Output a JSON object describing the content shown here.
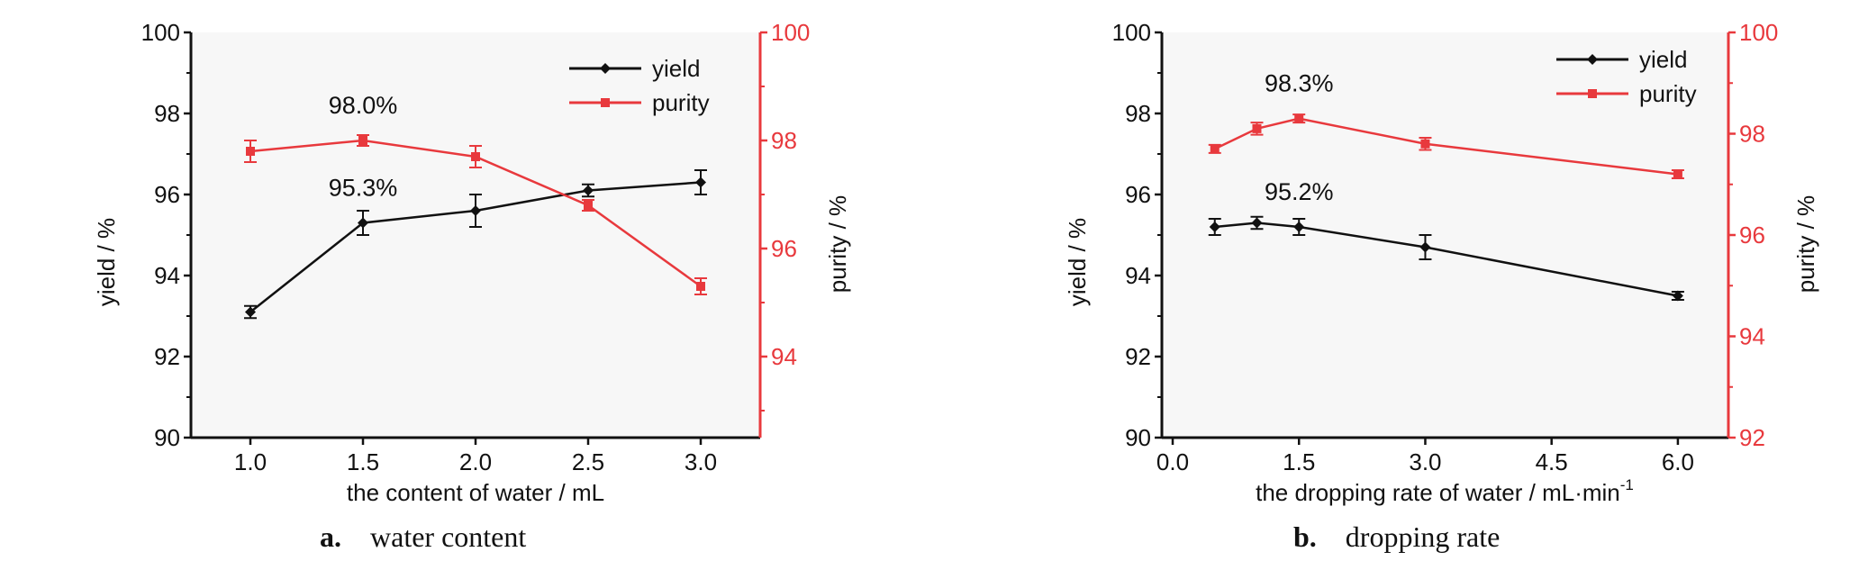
{
  "colors": {
    "yield": "#111111",
    "purity": "#e8393d",
    "plot_bg": "#f7f7f7"
  },
  "chart_data": [
    {
      "type": "line",
      "caption_letter": "a.",
      "caption_text": "water content",
      "xlabel": "the content of water / mL",
      "ylabel_left": "yield / %",
      "ylabel_right": "purity / %",
      "x_categories": [
        "1.0",
        "1.5",
        "2.0",
        "2.5",
        "3.0"
      ],
      "ylim_left": [
        90,
        100
      ],
      "yticks_left": [
        90,
        92,
        94,
        96,
        98,
        100
      ],
      "ylim_right": [
        92.5,
        100
      ],
      "yticks_right": [
        94,
        96,
        98,
        100
      ],
      "legend_position": "top-right",
      "series": [
        {
          "name": "yield",
          "axis": "left",
          "marker": "diamond",
          "values": [
            93.1,
            95.3,
            95.6,
            96.1,
            96.3
          ],
          "errors": [
            0.15,
            0.3,
            0.4,
            0.15,
            0.3
          ]
        },
        {
          "name": "purity",
          "axis": "right",
          "marker": "square",
          "values": [
            97.8,
            98.0,
            97.7,
            96.8,
            95.3
          ],
          "errors": [
            0.2,
            0.1,
            0.2,
            0.1,
            0.15
          ]
        }
      ],
      "annotations": [
        {
          "text": "98.0%",
          "x_index": 1,
          "axis": "right",
          "value": 98.0
        },
        {
          "text": "95.3%",
          "x_index": 1,
          "axis": "left",
          "value": 95.3
        }
      ]
    },
    {
      "type": "line",
      "caption_letter": "b.",
      "caption_text": "dropping rate",
      "xlabel": "the dropping rate of water / mL·min",
      "xlabel_sup": "-1",
      "ylabel_left": "yield / %",
      "ylabel_right": "purity / %",
      "xlim": [
        0,
        6.6
      ],
      "xticks": [
        0.0,
        1.5,
        3.0,
        4.5,
        6.0
      ],
      "xtick_labels": [
        "0.0",
        "1.5",
        "3.0",
        "4.5",
        "6.0"
      ],
      "ylim_left": [
        90,
        100
      ],
      "yticks_left": [
        90,
        92,
        94,
        96,
        98,
        100
      ],
      "ylim_right": [
        92,
        100
      ],
      "yticks_right": [
        92,
        94,
        96,
        98,
        100
      ],
      "legend_position": "top-right",
      "series": [
        {
          "name": "yield",
          "axis": "left",
          "marker": "diamond",
          "x": [
            0.5,
            1.0,
            1.5,
            3.0,
            6.0
          ],
          "values": [
            95.2,
            95.3,
            95.2,
            94.7,
            93.5
          ],
          "errors": [
            0.2,
            0.15,
            0.2,
            0.3,
            0.1
          ]
        },
        {
          "name": "purity",
          "axis": "right",
          "marker": "square",
          "x": [
            0.5,
            1.0,
            1.5,
            3.0,
            6.0
          ],
          "values": [
            97.7,
            98.1,
            98.3,
            97.8,
            97.2
          ],
          "errors": [
            0.08,
            0.12,
            0.08,
            0.12,
            0.08
          ]
        }
      ],
      "annotations": [
        {
          "text": "98.3%",
          "x": 1.5,
          "axis": "right",
          "value": 98.3
        },
        {
          "text": "95.2%",
          "x": 1.5,
          "axis": "left",
          "value": 95.2
        }
      ]
    }
  ]
}
